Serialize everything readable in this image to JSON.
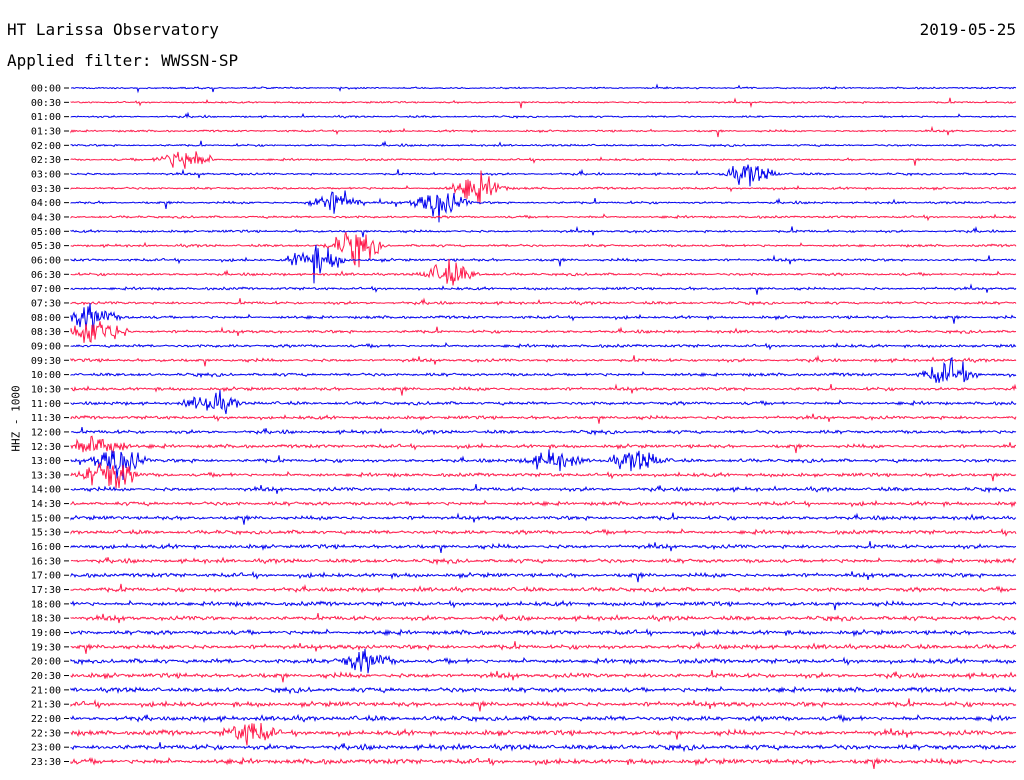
{
  "header": {
    "station": "HT Larissa Observatory",
    "date": "2019-05-25",
    "filter": "Applied filter: WWSSN-SP"
  },
  "colors": {
    "trace_a": "#0000ee",
    "trace_b": "#ff1a4b",
    "background": "#ffffff"
  },
  "chart_data": {
    "type": "line",
    "title": "HT Larissa Observatory",
    "ylabel": "HHZ - 1000",
    "xlabel": "",
    "tick_labels": [
      "00:00",
      "00:30",
      "01:00",
      "01:30",
      "02:00",
      "02:30",
      "03:00",
      "03:30",
      "04:00",
      "04:30",
      "05:00",
      "05:30",
      "06:00",
      "06:30",
      "07:00",
      "07:30",
      "08:00",
      "08:30",
      "09:00",
      "09:30",
      "10:00",
      "10:30",
      "11:00",
      "11:30",
      "12:00",
      "12:30",
      "13:00",
      "13:30",
      "14:00",
      "14:30",
      "15:00",
      "15:30",
      "16:00",
      "16:30",
      "17:00",
      "17:30",
      "18:00",
      "18:30",
      "19:00",
      "19:30",
      "20:00",
      "20:30",
      "21:00",
      "21:30",
      "22:00",
      "22:30",
      "23:00",
      "23:30"
    ],
    "row_minutes": 30,
    "grid": false,
    "events": [
      {
        "row": 5,
        "pos": 0.12,
        "amp": 2.5
      },
      {
        "row": 6,
        "pos": 0.72,
        "amp": 2.0
      },
      {
        "row": 7,
        "pos": 0.43,
        "amp": 2.8
      },
      {
        "row": 8,
        "pos": 0.28,
        "amp": 2.6
      },
      {
        "row": 8,
        "pos": 0.39,
        "amp": 3.0
      },
      {
        "row": 11,
        "pos": 0.3,
        "amp": 3.2
      },
      {
        "row": 12,
        "pos": 0.26,
        "amp": 3.2
      },
      {
        "row": 13,
        "pos": 0.4,
        "amp": 2.4
      },
      {
        "row": 16,
        "pos": 0.02,
        "amp": 2.5
      },
      {
        "row": 17,
        "pos": 0.03,
        "amp": 3.0
      },
      {
        "row": 20,
        "pos": 0.93,
        "amp": 2.6
      },
      {
        "row": 22,
        "pos": 0.15,
        "amp": 2.0
      },
      {
        "row": 25,
        "pos": 0.03,
        "amp": 3.0
      },
      {
        "row": 26,
        "pos": 0.05,
        "amp": 3.2
      },
      {
        "row": 27,
        "pos": 0.04,
        "amp": 3.4
      },
      {
        "row": 26,
        "pos": 0.51,
        "amp": 2.0
      },
      {
        "row": 26,
        "pos": 0.6,
        "amp": 2.0
      },
      {
        "row": 40,
        "pos": 0.31,
        "amp": 2.0
      },
      {
        "row": 45,
        "pos": 0.19,
        "amp": 2.2
      }
    ]
  }
}
